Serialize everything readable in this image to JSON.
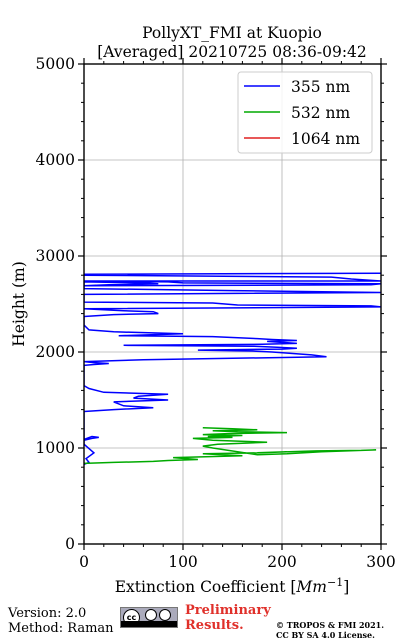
{
  "chart_data": {
    "type": "line",
    "title": "PollyXT_FMI at Kuopio",
    "subtitle": "[Averaged] 20210725 08:36-09:42",
    "xlabel": "Extinction Coefficient [",
    "xlabel_unit": "Mm",
    "xlabel_exp": "−1",
    "xlabel_close": "]",
    "ylabel": "Height (m)",
    "xlim": [
      0,
      300
    ],
    "ylim": [
      0,
      5000
    ],
    "xticks": [
      "0",
      "100",
      "200",
      "300"
    ],
    "yticks": [
      "0",
      "1000",
      "2000",
      "3000",
      "4000",
      "5000"
    ],
    "grid": true,
    "legend_position": "top-right",
    "series": [
      {
        "name": "355 nm",
        "color": "#0000ff",
        "x": [
          0,
          5,
          2,
          10,
          0,
          0,
          8,
          15,
          8,
          0,
          0,
          30,
          70,
          40,
          30,
          85,
          50,
          55,
          85,
          20,
          5,
          0,
          0,
          10,
          25,
          10,
          0,
          0,
          60,
          245,
          230,
          190,
          170,
          115,
          200,
          215,
          195,
          170,
          40,
          180,
          215,
          200,
          185,
          215,
          190,
          175,
          130,
          35,
          100,
          30,
          5,
          0,
          0,
          30,
          75,
          70,
          40,
          0,
          0,
          300,
          290,
          155,
          130,
          0,
          0,
          300,
          150,
          0,
          0,
          290,
          300,
          100,
          85,
          0,
          0,
          25,
          75,
          60,
          0,
          0,
          300,
          270,
          250,
          0,
          0,
          300
        ],
        "y": [
          830,
          850,
          890,
          950,
          1040,
          1080,
          1100,
          1110,
          1120,
          1090,
          1380,
          1400,
          1420,
          1440,
          1480,
          1500,
          1520,
          1540,
          1560,
          1580,
          1620,
          1650,
          1860,
          1870,
          1880,
          1890,
          1900,
          1900,
          1920,
          1950,
          1970,
          2000,
          2010,
          2020,
          2030,
          2040,
          2050,
          2060,
          2070,
          2080,
          2090,
          2100,
          2110,
          2120,
          2130,
          2140,
          2160,
          2170,
          2190,
          2210,
          2230,
          2280,
          2370,
          2390,
          2400,
          2420,
          2430,
          2450,
          2450,
          2470,
          2480,
          2490,
          2510,
          2520,
          2600,
          2620,
          2640,
          2660,
          2690,
          2700,
          2710,
          2720,
          2730,
          2740,
          2690,
          2700,
          2710,
          2720,
          2730,
          2740,
          2740,
          2760,
          2780,
          2800,
          2810,
          2820
        ]
      },
      {
        "name": "532 nm",
        "color": "#00aa00",
        "x": [
          0,
          30,
          70,
          85,
          115,
          90,
          160,
          120,
          180,
          205,
          175,
          235,
          280,
          295,
          240,
          205,
          175,
          130,
          120,
          135,
          185,
          130,
          110,
          150,
          125,
          160,
          120,
          145,
          205,
          155,
          130,
          175,
          150,
          120
        ],
        "y": [
          840,
          850,
          860,
          870,
          880,
          900,
          920,
          940,
          950,
          960,
          950,
          970,
          975,
          980,
          960,
          940,
          930,
          1000,
          1020,
          1040,
          1060,
          1080,
          1100,
          1110,
          1120,
          1130,
          1140,
          1150,
          1160,
          1170,
          1180,
          1190,
          1200,
          1210
        ]
      },
      {
        "name": "1064 nm",
        "color": "#e02020",
        "x": [],
        "y": []
      }
    ]
  },
  "footer": {
    "version": "Version: 2.0",
    "method": "Method: Raman",
    "preliminary_line1": "Preliminary",
    "preliminary_line2": "Results.",
    "copyright_line1": "© TROPOS & FMI 2021.",
    "copyright_line2": "CC BY SA 4.0 License.",
    "license_logo_text": "cc"
  }
}
